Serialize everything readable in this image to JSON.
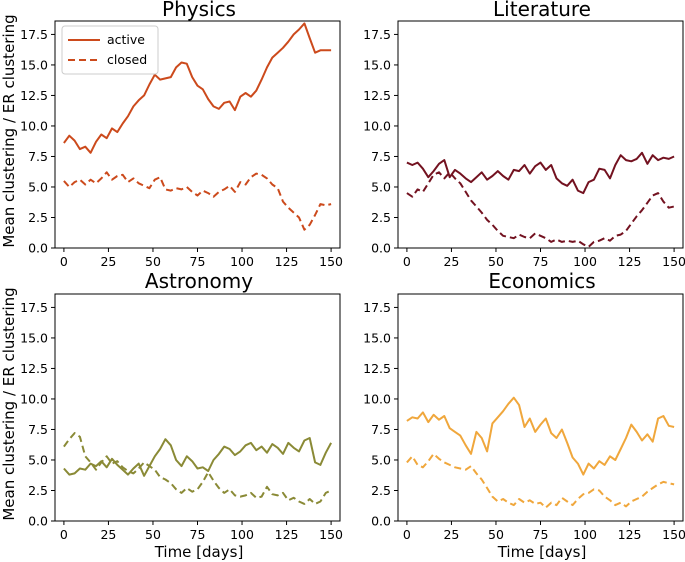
{
  "figure": {
    "ylabel": "Mean clustering / ER clustering",
    "xlabel": "Time [days]"
  },
  "legend": {
    "active": "active",
    "closed": "closed",
    "location": "upper-left of Physics panel"
  },
  "chart_data": [
    {
      "type": "line",
      "title": "Physics",
      "color": "#cc4a1c",
      "xlim": [
        -5,
        155
      ],
      "ylim": [
        0,
        18.6
      ],
      "xticks": [
        "0",
        "25",
        "50",
        "75",
        "100",
        "125",
        "150"
      ],
      "yticks": [
        "0.0",
        "2.5",
        "5.0",
        "7.5",
        "10.0",
        "12.5",
        "15.0",
        "17.5"
      ],
      "series": [
        {
          "name": "active",
          "style": "solid",
          "x": [
            0,
            3,
            6,
            9,
            12,
            15,
            18,
            21,
            24,
            27,
            30,
            33,
            36,
            39,
            42,
            45,
            48,
            51,
            54,
            57,
            60,
            63,
            66,
            69,
            72,
            75,
            78,
            81,
            84,
            87,
            90,
            93,
            96,
            99,
            102,
            105,
            108,
            111,
            114,
            117,
            120,
            123,
            126,
            129,
            132,
            135,
            138,
            141,
            144,
            147,
            150
          ],
          "y": [
            8.6,
            9.2,
            8.8,
            8.1,
            8.3,
            7.8,
            8.7,
            9.3,
            9.0,
            9.8,
            9.5,
            10.2,
            10.8,
            11.6,
            12.1,
            12.5,
            13.4,
            14.2,
            13.8,
            13.9,
            14.0,
            14.8,
            15.2,
            15.1,
            14.0,
            13.3,
            13.0,
            12.2,
            11.6,
            11.4,
            11.9,
            12.0,
            11.3,
            12.4,
            12.7,
            12.4,
            12.9,
            13.8,
            14.8,
            15.6,
            16.0,
            16.4,
            16.9,
            17.5,
            17.9,
            18.4,
            17.2,
            16.0,
            16.2,
            16.2,
            16.2
          ]
        },
        {
          "name": "closed",
          "style": "dashed",
          "x": [
            0,
            3,
            6,
            9,
            12,
            15,
            18,
            21,
            24,
            27,
            30,
            33,
            36,
            39,
            42,
            45,
            48,
            51,
            54,
            57,
            60,
            63,
            66,
            69,
            72,
            75,
            78,
            81,
            84,
            87,
            90,
            93,
            96,
            99,
            102,
            105,
            108,
            111,
            114,
            117,
            120,
            123,
            126,
            129,
            132,
            135,
            138,
            141,
            144,
            147,
            150
          ],
          "y": [
            5.5,
            5.0,
            5.4,
            5.6,
            5.2,
            5.6,
            5.3,
            5.7,
            6.2,
            5.6,
            5.9,
            6.0,
            5.4,
            5.7,
            5.3,
            5.1,
            4.9,
            5.6,
            5.8,
            4.8,
            4.7,
            4.9,
            4.8,
            5.0,
            4.6,
            4.3,
            4.7,
            4.5,
            4.2,
            4.6,
            4.8,
            5.1,
            4.6,
            5.4,
            5.2,
            5.8,
            6.1,
            6.0,
            5.7,
            5.2,
            4.9,
            3.8,
            3.3,
            2.9,
            2.5,
            1.5,
            1.9,
            2.7,
            3.6,
            3.5,
            3.6
          ]
        }
      ]
    },
    {
      "type": "line",
      "title": "Literature",
      "color": "#731220",
      "xlim": [
        -5,
        155
      ],
      "ylim": [
        0,
        18.6
      ],
      "xticks": [
        "0",
        "25",
        "50",
        "75",
        "100",
        "125",
        "150"
      ],
      "yticks": [
        "0.0",
        "2.5",
        "5.0",
        "7.5",
        "10.0",
        "12.5",
        "15.0",
        "17.5"
      ],
      "series": [
        {
          "name": "active",
          "style": "solid",
          "x": [
            0,
            3,
            6,
            9,
            12,
            15,
            18,
            21,
            24,
            27,
            30,
            33,
            36,
            39,
            42,
            45,
            48,
            51,
            54,
            57,
            60,
            63,
            66,
            69,
            72,
            75,
            78,
            81,
            84,
            87,
            90,
            93,
            96,
            99,
            102,
            105,
            108,
            111,
            114,
            117,
            120,
            123,
            126,
            129,
            132,
            135,
            138,
            141,
            144,
            147,
            150
          ],
          "y": [
            7.0,
            6.8,
            7.0,
            6.5,
            5.8,
            6.3,
            6.9,
            7.2,
            5.8,
            6.4,
            6.1,
            5.7,
            5.4,
            5.8,
            6.2,
            5.6,
            5.9,
            6.3,
            5.9,
            5.6,
            6.4,
            6.3,
            6.8,
            6.1,
            6.7,
            7.0,
            6.4,
            6.8,
            5.7,
            5.3,
            5.1,
            5.6,
            4.7,
            4.5,
            5.4,
            5.6,
            6.5,
            6.4,
            5.7,
            6.8,
            7.6,
            7.2,
            7.1,
            7.3,
            7.8,
            6.9,
            7.6,
            7.2,
            7.4,
            7.3,
            7.5
          ]
        },
        {
          "name": "closed",
          "style": "dashed",
          "x": [
            0,
            3,
            6,
            9,
            12,
            15,
            18,
            21,
            24,
            27,
            30,
            33,
            36,
            39,
            42,
            45,
            48,
            51,
            54,
            57,
            60,
            63,
            66,
            69,
            72,
            75,
            78,
            81,
            84,
            87,
            90,
            93,
            96,
            99,
            102,
            105,
            108,
            111,
            114,
            117,
            120,
            123,
            126,
            129,
            132,
            135,
            138,
            141,
            144,
            147,
            150
          ],
          "y": [
            4.5,
            4.2,
            4.8,
            4.6,
            5.3,
            6.0,
            6.2,
            5.7,
            6.2,
            5.7,
            5.3,
            4.6,
            3.9,
            3.4,
            2.9,
            2.3,
            1.9,
            1.4,
            1.0,
            0.9,
            0.8,
            1.1,
            0.9,
            0.8,
            1.2,
            1.0,
            0.8,
            0.5,
            0.7,
            0.5,
            0.6,
            0.5,
            0.6,
            0.3,
            0.1,
            0.5,
            0.6,
            0.8,
            0.6,
            1.0,
            1.1,
            1.4,
            2.0,
            2.6,
            3.1,
            3.7,
            4.3,
            4.5,
            3.8,
            3.3,
            3.4
          ]
        }
      ]
    },
    {
      "type": "line",
      "title": "Astronomy",
      "color": "#8a8a36",
      "xlim": [
        -5,
        155
      ],
      "ylim": [
        0,
        18.6
      ],
      "xticks": [
        "0",
        "25",
        "50",
        "75",
        "100",
        "125",
        "150"
      ],
      "yticks": [
        "0.0",
        "2.5",
        "5.0",
        "7.5",
        "10.0",
        "12.5",
        "15.0",
        "17.5"
      ],
      "series": [
        {
          "name": "active",
          "style": "solid",
          "x": [
            0,
            3,
            6,
            9,
            12,
            15,
            18,
            21,
            24,
            27,
            30,
            33,
            36,
            39,
            42,
            45,
            48,
            51,
            54,
            57,
            60,
            63,
            66,
            69,
            72,
            75,
            78,
            81,
            84,
            87,
            90,
            93,
            96,
            99,
            102,
            105,
            108,
            111,
            114,
            117,
            120,
            123,
            126,
            129,
            132,
            135,
            138,
            141,
            144,
            147,
            150
          ],
          "y": [
            4.3,
            3.8,
            3.9,
            4.3,
            4.2,
            4.7,
            4.5,
            4.9,
            4.4,
            5.1,
            4.6,
            4.2,
            3.8,
            4.3,
            4.7,
            3.7,
            4.5,
            5.3,
            5.9,
            6.7,
            6.2,
            5.0,
            4.5,
            5.3,
            4.9,
            4.3,
            4.4,
            4.1,
            5.0,
            5.5,
            6.1,
            5.9,
            5.4,
            5.7,
            6.2,
            6.4,
            5.8,
            6.1,
            5.6,
            6.3,
            6.0,
            5.5,
            6.4,
            6.0,
            5.7,
            6.6,
            6.8,
            4.8,
            4.6,
            5.6,
            6.4
          ]
        },
        {
          "name": "closed",
          "style": "dashed",
          "x": [
            0,
            3,
            6,
            9,
            12,
            15,
            18,
            21,
            24,
            27,
            30,
            33,
            36,
            39,
            42,
            45,
            48,
            51,
            54,
            57,
            60,
            63,
            66,
            69,
            72,
            75,
            78,
            81,
            84,
            87,
            90,
            93,
            96,
            99,
            102,
            105,
            108,
            111,
            114,
            117,
            120,
            123,
            126,
            129,
            132,
            135,
            138,
            141,
            144,
            147,
            150
          ],
          "y": [
            6.1,
            6.7,
            7.2,
            6.9,
            5.3,
            4.8,
            4.2,
            4.8,
            5.3,
            4.7,
            4.9,
            4.4,
            4.1,
            3.9,
            4.3,
            4.8,
            4.5,
            4.2,
            3.6,
            3.4,
            3.1,
            2.6,
            2.3,
            2.7,
            2.4,
            2.6,
            3.2,
            4.0,
            3.3,
            2.7,
            2.3,
            2.6,
            2.1,
            2.0,
            2.1,
            2.3,
            1.9,
            2.0,
            2.8,
            2.2,
            2.1,
            2.3,
            1.7,
            1.9,
            1.6,
            1.4,
            1.8,
            1.4,
            1.6,
            2.3,
            2.5
          ]
        }
      ]
    },
    {
      "type": "line",
      "title": "Economics",
      "color": "#f0a73c",
      "xlim": [
        -5,
        155
      ],
      "ylim": [
        0,
        18.6
      ],
      "xticks": [
        "0",
        "25",
        "50",
        "75",
        "100",
        "125",
        "150"
      ],
      "yticks": [
        "0.0",
        "2.5",
        "5.0",
        "7.5",
        "10.0",
        "12.5",
        "15.0",
        "17.5"
      ],
      "series": [
        {
          "name": "active",
          "style": "solid",
          "x": [
            0,
            3,
            6,
            9,
            12,
            15,
            18,
            21,
            24,
            27,
            30,
            33,
            36,
            39,
            42,
            45,
            48,
            51,
            54,
            57,
            60,
            63,
            66,
            69,
            72,
            75,
            78,
            81,
            84,
            87,
            90,
            93,
            96,
            99,
            102,
            105,
            108,
            111,
            114,
            117,
            120,
            123,
            126,
            129,
            132,
            135,
            138,
            141,
            144,
            147,
            150
          ],
          "y": [
            8.2,
            8.5,
            8.4,
            8.9,
            8.1,
            8.7,
            8.3,
            8.6,
            7.6,
            7.3,
            7.0,
            6.2,
            5.5,
            7.3,
            6.8,
            5.7,
            8.0,
            8.5,
            9.0,
            9.6,
            10.1,
            9.5,
            7.7,
            8.4,
            7.3,
            7.9,
            8.4,
            7.2,
            6.8,
            7.5,
            6.4,
            5.2,
            4.7,
            3.8,
            4.7,
            4.3,
            4.9,
            4.6,
            5.3,
            5.0,
            5.9,
            6.8,
            7.9,
            7.3,
            6.6,
            7.1,
            6.5,
            8.4,
            8.6,
            7.8,
            7.7
          ]
        },
        {
          "name": "closed",
          "style": "dashed",
          "x": [
            0,
            3,
            6,
            9,
            12,
            15,
            18,
            21,
            24,
            27,
            30,
            33,
            36,
            39,
            42,
            45,
            48,
            51,
            54,
            57,
            60,
            63,
            66,
            69,
            72,
            75,
            78,
            81,
            84,
            87,
            90,
            93,
            96,
            99,
            102,
            105,
            108,
            111,
            114,
            117,
            120,
            123,
            126,
            129,
            132,
            135,
            138,
            141,
            144,
            147,
            150
          ],
          "y": [
            4.8,
            5.3,
            4.6,
            4.4,
            4.9,
            5.5,
            5.1,
            4.8,
            4.6,
            4.4,
            4.3,
            4.2,
            4.5,
            3.9,
            3.4,
            2.7,
            2.0,
            1.6,
            1.8,
            1.5,
            1.3,
            1.8,
            1.5,
            1.7,
            1.4,
            1.5,
            1.1,
            1.5,
            1.3,
            1.9,
            1.6,
            1.3,
            1.8,
            2.2,
            2.3,
            2.6,
            2.5,
            2.0,
            1.7,
            1.3,
            1.5,
            1.2,
            1.6,
            1.8,
            2.0,
            2.4,
            2.7,
            3.0,
            3.2,
            3.1,
            3.0
          ]
        }
      ]
    }
  ]
}
